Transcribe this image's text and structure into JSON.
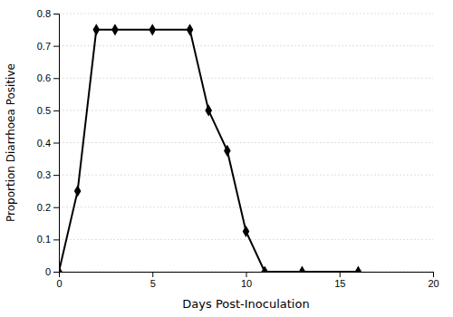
{
  "chart_data": {
    "type": "line",
    "x": [
      0,
      1,
      2,
      3,
      5,
      7,
      8,
      9,
      10,
      11,
      13,
      16
    ],
    "values": [
      0,
      0.25,
      0.75,
      0.75,
      0.75,
      0.75,
      0.5,
      0.375,
      0.125,
      0,
      0,
      0
    ],
    "xlabel": "Days Post-Inoculation",
    "ylabel": "Proportion Diarrhoea Positive",
    "xlim": [
      0,
      20
    ],
    "ylim": [
      0,
      0.8
    ],
    "xticks": [
      0,
      5,
      10,
      15,
      20
    ],
    "yticks": [
      0,
      0.1,
      0.2,
      0.3,
      0.4,
      0.5,
      0.6,
      0.7,
      0.8
    ],
    "color": "#000000",
    "marker": "diamond",
    "grid": true
  }
}
